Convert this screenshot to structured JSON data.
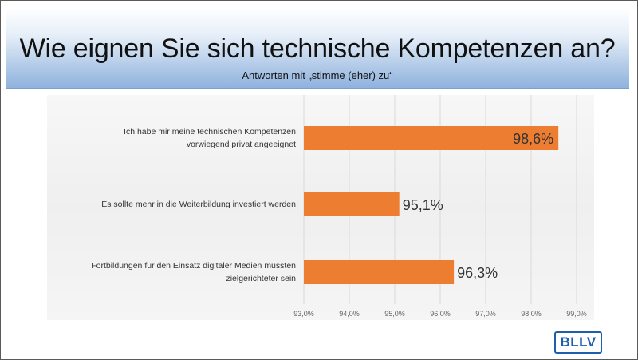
{
  "slide": {
    "title": "Wie eignen Sie sich technische Kompetenzen an?",
    "subtitle": "Antworten mit „stimme (eher) zu“",
    "logo": "BLLV"
  },
  "colors": {
    "bar": "#ED7D31",
    "header_gradient_bottom": "#8FB2DD",
    "logo_blue": "#1D5FAD"
  },
  "chart_data": {
    "type": "bar",
    "orientation": "horizontal",
    "categories": [
      "Ich habe mir meine technischen Kompetenzen vorwiegend privat angeeignet",
      "Es sollte mehr in die Weiterbildung investiert werden",
      "Fortbildungen für den Einsatz digitaler Medien müssten zielgerichteter sein"
    ],
    "category_lines": [
      [
        "Ich habe mir meine technischen Kompetenzen",
        "vorwiegend privat angeeignet"
      ],
      [
        "Es sollte mehr in die Weiterbildung investiert werden"
      ],
      [
        "Fortbildungen für den Einsatz digitaler Medien müssten",
        "zielgerichteter sein"
      ]
    ],
    "values": [
      98.6,
      95.1,
      96.3
    ],
    "data_labels": [
      "98,6%",
      "95,1%",
      "96,3%"
    ],
    "xlim": [
      93.0,
      99.0
    ],
    "xticks": [
      93,
      94,
      95,
      96,
      97,
      98,
      99
    ],
    "xtick_labels": [
      "93,0%",
      "94,0%",
      "95,0%",
      "96,0%",
      "97,0%",
      "98,0%",
      "99,0%"
    ],
    "grid": true
  }
}
